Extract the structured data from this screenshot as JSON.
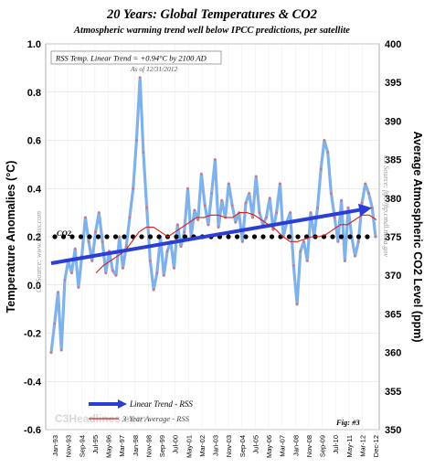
{
  "chart_data": {
    "type": "line",
    "title": "20 Years: Global Temperatures & CO2",
    "subtitle": "Atmospheric warming trend well below IPCC predictions, per satellite",
    "ylabel": "Temperature Anomalies (°C)",
    "y2label": "Average Atmospheric CO2 Level (ppm)",
    "ylim": [
      -0.6,
      1.0
    ],
    "y2lim": [
      350,
      400
    ],
    "yticks": [
      "1.0",
      "0.8",
      "0.6",
      "0.4",
      "0.2",
      "0.0",
      "-0.2",
      "-0.4",
      "-0.6"
    ],
    "y2ticks": [
      "400",
      "395",
      "390",
      "385",
      "380",
      "375",
      "370",
      "365",
      "360",
      "355",
      "350"
    ],
    "xticks": [
      "Jan-93",
      "Nov-93",
      "Sep-94",
      "Jul-95",
      "May-96",
      "Mar-97",
      "Jan-98",
      "Nov-98",
      "Sep-99",
      "Jul-00",
      "May-01",
      "Mar-02",
      "Jan-03",
      "Nov-03",
      "Sep-04",
      "Jul-05",
      "May-06",
      "Mar-07",
      "Jan-08",
      "Nov-08",
      "Sep-09",
      "Jul-10",
      "May-11",
      "Mar-12",
      "Dec-12"
    ],
    "grid": true,
    "legend_position": "bottom-left",
    "annotations": {
      "trend_note": "RSS Temp. Linear Trend = +0.94°C by 2100 AD",
      "as_of": "As of 12/31/2012",
      "co2_label": "CO2",
      "source_left": "C3 Source: www.remss.com",
      "source_right": "C3 Source: ftp://ftp.cmdl.noaa.gov",
      "watermark": "C3Headlines.com",
      "fig": "Fig: #3"
    },
    "series": [
      {
        "name": "RSS monthly temperature anomaly",
        "color": "#7fb2ea",
        "marker_color": "#e07070",
        "x_start": "1993-01",
        "step_months": 3,
        "values": [
          -0.28,
          -0.16,
          -0.03,
          -0.27,
          0.02,
          0.1,
          0.05,
          0.15,
          -0.01,
          0.12,
          0.28,
          0.18,
          0.1,
          0.22,
          0.3,
          0.18,
          0.05,
          0.14,
          0.06,
          0.04,
          0.2,
          0.07,
          0.16,
          0.28,
          0.4,
          0.6,
          0.86,
          0.55,
          0.32,
          0.1,
          -0.02,
          0.05,
          0.2,
          0.04,
          0.14,
          0.18,
          0.07,
          0.25,
          0.16,
          0.22,
          0.4,
          0.2,
          0.31,
          0.27,
          0.46,
          0.33,
          0.25,
          0.38,
          0.52,
          0.24,
          0.35,
          0.28,
          0.42,
          0.33,
          0.26,
          0.3,
          0.18,
          0.34,
          0.38,
          0.28,
          0.45,
          0.3,
          0.25,
          0.28,
          0.36,
          0.23,
          0.3,
          0.42,
          0.2,
          0.26,
          0.3,
          0.08,
          -0.08,
          0.14,
          0.18,
          0.1,
          0.3,
          0.2,
          0.32,
          0.48,
          0.6,
          0.55,
          0.38,
          0.28,
          0.18,
          0.35,
          0.1,
          0.32,
          0.2,
          0.12,
          0.18,
          0.34,
          0.42,
          0.38,
          0.32,
          0.2
        ]
      },
      {
        "name": "Linear Trend - RSS",
        "color": "#2a3ed6",
        "values": [
          0.09,
          0.32
        ]
      },
      {
        "name": "3-Year Average - RSS",
        "color": "#e01a1a",
        "values": [
          0.05,
          0.08,
          0.1,
          0.12,
          0.14,
          0.18,
          0.22,
          0.24,
          0.24,
          0.22,
          0.2,
          0.22,
          0.24,
          0.26,
          0.28,
          0.28,
          0.29,
          0.29,
          0.28,
          0.28,
          0.3,
          0.3,
          0.29,
          0.27,
          0.25,
          0.23,
          0.2,
          0.18,
          0.18,
          0.19,
          0.2,
          0.2,
          0.21,
          0.23,
          0.25,
          0.25,
          0.27,
          0.29,
          0.29,
          0.27
        ]
      },
      {
        "name": "CO2",
        "color": "#000000",
        "values": [
          0.2,
          0.2
        ]
      }
    ]
  }
}
